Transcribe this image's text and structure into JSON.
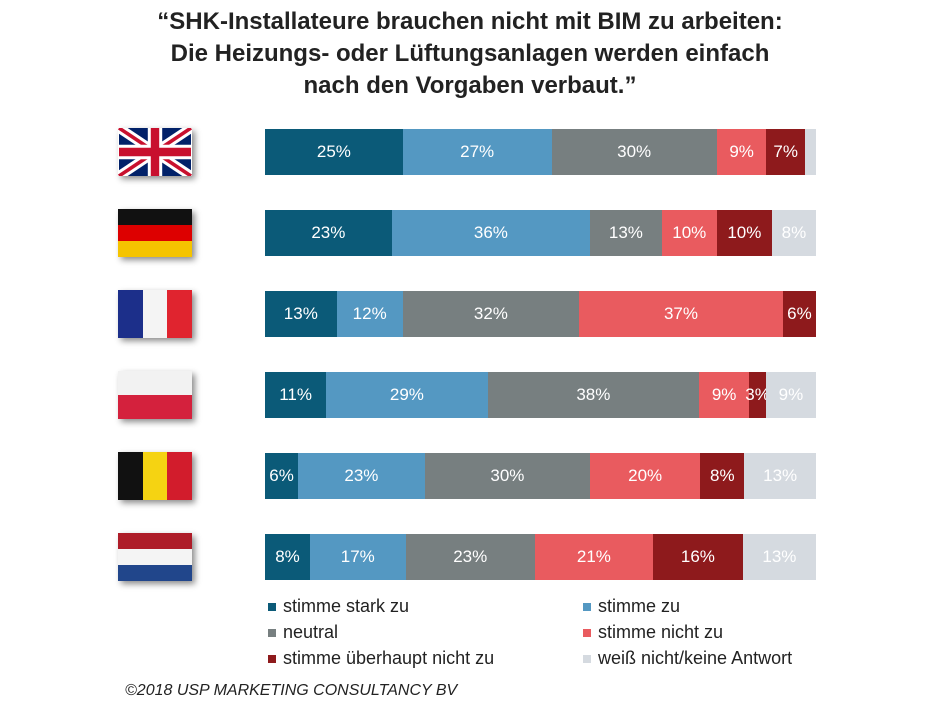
{
  "chart_data": {
    "type": "bar",
    "orientation": "horizontal",
    "stacked": true,
    "title": [
      "“SHK-Installateure brauchen nicht mit BIM zu arbeiten:",
      "Die Heizungs- oder Lüftungsanlagen werden einfach",
      "nach den Vorgaben verbaut.”"
    ],
    "categories": [
      "UK",
      "Deutschland",
      "Frankreich",
      "Polen",
      "Belgien",
      "Niederlande"
    ],
    "category_icons": [
      "flag-uk-icon",
      "flag-germany-icon",
      "flag-france-icon",
      "flag-poland-icon",
      "flag-belgium-icon",
      "flag-netherlands-icon"
    ],
    "series": [
      {
        "name": "stimme stark zu",
        "color": "#0b5a78",
        "values": [
          25,
          23,
          13,
          11,
          6,
          8
        ],
        "labels": [
          "25%",
          "23%",
          "13%",
          "11%",
          "6%",
          "8%"
        ]
      },
      {
        "name": "stimme zu",
        "color": "#5498c2",
        "values": [
          27,
          36,
          12,
          29,
          23,
          17
        ],
        "labels": [
          "27%",
          "36%",
          "12%",
          "29%",
          "23%",
          "17%"
        ]
      },
      {
        "name": "neutral",
        "color": "#777f80",
        "values": [
          30,
          13,
          32,
          38,
          30,
          23
        ],
        "labels": [
          "30%",
          "13%",
          "32%",
          "38%",
          "30%",
          "23%"
        ]
      },
      {
        "name": "stimme nicht zu",
        "color": "#e95b5f",
        "values": [
          9,
          10,
          37,
          9,
          20,
          21
        ],
        "labels": [
          "9%",
          "10%",
          "37%",
          "9%",
          "20%",
          "21%"
        ]
      },
      {
        "name": "stimme überhaupt nicht zu",
        "color": "#8e1a1c",
        "values": [
          7,
          10,
          6,
          3,
          8,
          16
        ],
        "labels": [
          "7%",
          "10%",
          "6%",
          "3%",
          "8%",
          "16%"
        ]
      },
      {
        "name": "weiß nicht/keine Antwort",
        "color": "#d5dae0",
        "values": [
          2,
          8,
          0,
          9,
          13,
          13
        ],
        "labels": [
          "",
          "8%",
          "",
          "9%",
          "13%",
          "13%"
        ]
      }
    ],
    "xlim": [
      0,
      100
    ],
    "grid": false,
    "legend_placement": "bottom"
  },
  "footer": "©2018 USP MARKETING CONSULTANCY BV"
}
